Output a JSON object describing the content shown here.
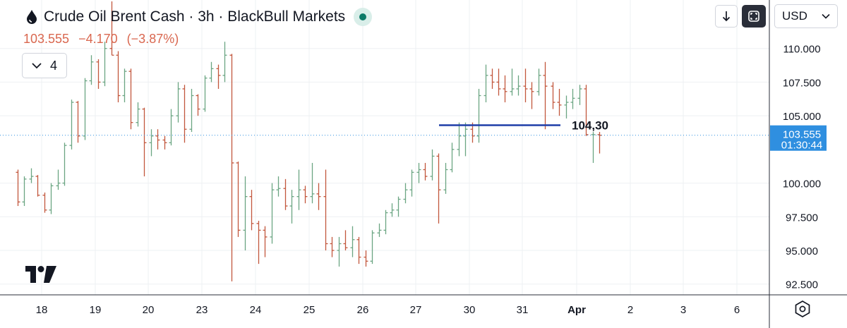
{
  "header": {
    "title": "Crude Oil Brent Cash · 3h · BlackBull Markets",
    "last": "103.555",
    "change": "−4.170",
    "change_pct": "(−3.87%)",
    "indicator_count": "4"
  },
  "controls": {
    "currency": "USD"
  },
  "colors": {
    "up": "#6ba583",
    "down": "#c2573d",
    "line": "#1f3ea8",
    "price_label_bg": "#2f8fe0"
  },
  "chart_data": {
    "type": "ohlc",
    "y_ticks": [
      "110.000",
      "107.500",
      "105.000",
      "100.000",
      "97.500",
      "95.000",
      "92.500"
    ],
    "y_range": [
      91.7,
      113.6
    ],
    "x_labels": [
      "18",
      "19",
      "20",
      "23",
      "24",
      "25",
      "26",
      "27",
      "30",
      "31",
      "Apr",
      "2",
      "3",
      "6"
    ],
    "last_price": 103.555,
    "countdown": "01:30:44",
    "drawn_line": {
      "value": 104.3,
      "label": "104,30",
      "from_day": "27",
      "to_day": "31"
    },
    "days": [
      {
        "label": "18",
        "bars": [
          [
            100.8,
            101.0,
            98.3,
            98.6
          ],
          [
            98.6,
            100.5,
            98.3,
            100.3
          ],
          [
            100.3,
            101.1,
            100.0,
            100.5
          ],
          [
            100.5,
            100.6,
            99.0,
            99.1
          ],
          [
            99.1,
            99.3,
            97.8,
            98.0
          ],
          [
            98.0,
            100.0,
            97.7,
            99.8
          ],
          [
            99.8,
            101.0,
            99.5,
            100.0
          ],
          [
            100.0,
            103.0,
            99.8,
            102.8
          ]
        ]
      },
      {
        "label": "19",
        "bars": [
          [
            102.8,
            106.2,
            102.5,
            106.0
          ],
          [
            106.0,
            106.1,
            103.0,
            103.5
          ],
          [
            103.5,
            107.8,
            103.2,
            107.6
          ],
          [
            107.6,
            109.5,
            107.3,
            109.0
          ],
          [
            109.0,
            109.2,
            107.0,
            107.5
          ],
          [
            107.5,
            110.5,
            107.2,
            110.0
          ],
          [
            110.0,
            113.5,
            109.5,
            109.5
          ],
          [
            109.5,
            109.8,
            106.0,
            106.5
          ]
        ]
      },
      {
        "label": "20",
        "bars": [
          [
            106.5,
            108.5,
            106.0,
            108.3
          ],
          [
            108.3,
            108.5,
            104.0,
            104.5
          ],
          [
            104.5,
            106.0,
            104.2,
            105.5
          ],
          [
            105.5,
            105.6,
            100.5,
            103.0
          ],
          [
            103.0,
            104.0,
            102.0,
            103.5
          ],
          [
            103.5,
            104.0,
            102.5,
            103.2
          ],
          [
            103.2,
            103.5,
            102.5,
            103.0
          ],
          [
            103.0,
            105.5,
            102.8,
            105.0
          ]
        ]
      },
      {
        "label": "23",
        "bars": [
          [
            105.0,
            107.5,
            104.5,
            107.0
          ],
          [
            107.0,
            107.3,
            103.0,
            104.0
          ],
          [
            104.0,
            107.0,
            103.8,
            106.5
          ],
          [
            106.5,
            106.6,
            105.0,
            105.5
          ],
          [
            105.5,
            108.0,
            105.3,
            107.8
          ],
          [
            107.8,
            109.0,
            107.5,
            108.5
          ],
          [
            108.5,
            108.8,
            107.0,
            108.0
          ],
          [
            108.0,
            110.5,
            107.5,
            109.5
          ]
        ]
      },
      {
        "label": "24",
        "bars": [
          [
            109.5,
            109.6,
            92.7,
            101.5
          ],
          [
            101.5,
            101.6,
            96.0,
            96.5
          ],
          [
            96.5,
            100.5,
            95.0,
            99.0
          ],
          [
            99.0,
            99.5,
            96.5,
            97.0
          ],
          [
            97.0,
            97.2,
            94.0,
            96.5
          ],
          [
            96.5,
            96.8,
            94.5,
            96.0
          ],
          [
            96.0,
            100.0,
            95.5,
            99.5
          ],
          [
            99.5,
            100.5,
            99.0,
            99.6
          ]
        ]
      },
      {
        "label": "25",
        "bars": [
          [
            99.6,
            100.3,
            98.0,
            98.3
          ],
          [
            98.3,
            99.5,
            97.0,
            99.0
          ],
          [
            99.0,
            101.0,
            98.0,
            99.5
          ],
          [
            99.5,
            99.8,
            98.5,
            99.0
          ],
          [
            99.0,
            101.5,
            98.5,
            99.2
          ],
          [
            99.2,
            100.0,
            98.0,
            99.0
          ],
          [
            99.0,
            101.0,
            95.0,
            95.5
          ],
          [
            95.5,
            96.0,
            94.5,
            95.0
          ]
        ]
      },
      {
        "label": "26",
        "bars": [
          [
            95.0,
            96.0,
            93.8,
            95.5
          ],
          [
            95.5,
            96.5,
            95.0,
            95.2
          ],
          [
            95.2,
            96.8,
            94.5,
            95.8
          ],
          [
            95.8,
            96.0,
            94.0,
            94.5
          ],
          [
            94.5,
            95.0,
            93.8,
            94.2
          ],
          [
            94.2,
            96.5,
            94.0,
            96.3
          ],
          [
            96.3,
            97.0,
            96.0,
            96.5
          ],
          [
            96.5,
            98.0,
            96.2,
            97.8
          ]
        ]
      },
      {
        "label": "27",
        "bars": [
          [
            97.8,
            98.5,
            97.5,
            98.0
          ],
          [
            98.0,
            99.0,
            97.5,
            98.8
          ],
          [
            98.8,
            100.0,
            98.5,
            99.5
          ],
          [
            99.5,
            101.0,
            99.0,
            100.8
          ],
          [
            100.8,
            101.5,
            100.0,
            101.0
          ],
          [
            101.0,
            101.5,
            100.2,
            100.5
          ],
          [
            100.5,
            102.5,
            100.2,
            102.0
          ],
          [
            102.0,
            102.2,
            97.0,
            99.5
          ]
        ]
      },
      {
        "label": "30",
        "bars": [
          [
            99.5,
            101.5,
            99.2,
            101.0
          ],
          [
            101.0,
            103.0,
            100.8,
            102.5
          ],
          [
            102.5,
            104.5,
            102.0,
            103.5
          ],
          [
            103.5,
            104.5,
            102.0,
            104.0
          ],
          [
            104.0,
            104.5,
            103.0,
            103.5
          ],
          [
            103.5,
            107.0,
            103.0,
            106.5
          ],
          [
            106.5,
            108.8,
            106.0,
            108.0
          ],
          [
            108.0,
            108.5,
            107.0,
            107.5
          ]
        ]
      },
      {
        "label": "31",
        "bars": [
          [
            107.5,
            108.5,
            106.5,
            107.0
          ],
          [
            107.0,
            108.0,
            106.0,
            106.8
          ],
          [
            106.8,
            108.5,
            106.5,
            107.0
          ],
          [
            107.0,
            108.0,
            106.5,
            107.2
          ],
          [
            107.2,
            108.5,
            106.0,
            107.0
          ],
          [
            107.0,
            107.5,
            105.5,
            106.8
          ],
          [
            106.8,
            108.5,
            106.5,
            108.0
          ],
          [
            108.0,
            109.0,
            104.0,
            107.2
          ]
        ]
      },
      {
        "label": "Apr",
        "bars": [
          [
            107.2,
            107.5,
            105.5,
            106.0
          ],
          [
            106.0,
            107.0,
            105.0,
            105.8
          ],
          [
            105.8,
            106.5,
            104.8,
            106.0
          ],
          [
            106.0,
            107.0,
            105.5,
            106.3
          ],
          [
            106.3,
            107.3,
            105.8,
            107.0
          ],
          [
            107.0,
            107.3,
            103.5,
            103.6
          ],
          [
            103.6,
            103.8,
            101.5,
            103.6
          ],
          [
            103.6,
            103.8,
            102.2,
            103.555
          ]
        ]
      }
    ]
  }
}
